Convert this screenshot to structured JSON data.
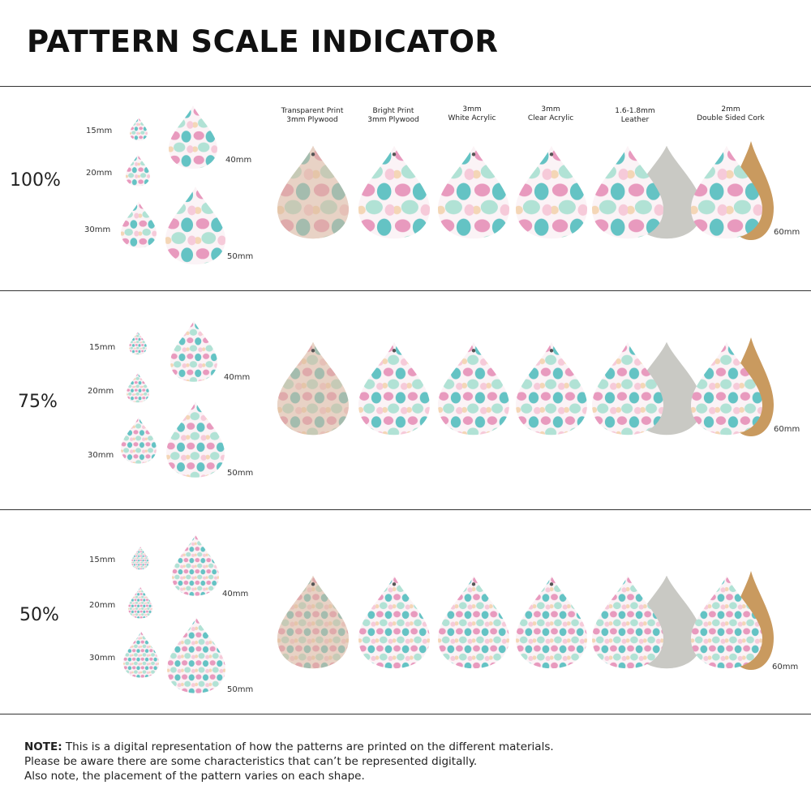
{
  "title": "PATTERN SCALE INDICATOR",
  "materials": [
    {
      "line1": "Transparent Print",
      "line2": "3mm Plywood"
    },
    {
      "line1": "Bright Print",
      "line2": "3mm Plywood"
    },
    {
      "line1": "3mm",
      "line2": "White Acrylic"
    },
    {
      "line1": "3mm",
      "line2": "Clear Acrylic"
    },
    {
      "line1": "1.6-1.8mm",
      "line2": "Leather"
    },
    {
      "line1": "2mm",
      "line2": "Double Sided Cork"
    }
  ],
  "rows": [
    {
      "scale": "100%",
      "sizes": {
        "s15": "15mm",
        "s20": "20mm",
        "s30": "30mm",
        "s40": "40mm",
        "s50": "50mm"
      },
      "material_size": "60mm"
    },
    {
      "scale": "75%",
      "sizes": {
        "s15": "15mm",
        "s20": "20mm",
        "s30": "30mm",
        "s40": "40mm",
        "s50": "50mm"
      },
      "material_size": "60mm"
    },
    {
      "scale": "50%",
      "sizes": {
        "s15": "15mm",
        "s20": "20mm",
        "s30": "30mm",
        "s40": "40mm",
        "s50": "50mm"
      },
      "material_size": "60mm"
    }
  ],
  "note": {
    "label": "NOTE:",
    "line1": "This is a digital representation of how the patterns are printed on the different materials.",
    "line2": "Please be aware there are some characteristics that can’t be represented digitally.",
    "line3": "Also note, the placement of the pattern varies on each shape."
  },
  "colors": {
    "pink": "#e58bb4",
    "teal": "#3fb6b8",
    "mint": "#a9e0d2",
    "blush": "#f5c6d6",
    "peach": "#f3d3b0",
    "wood": "#d8b79c",
    "leather_back": "#c9c9c4",
    "cork": "#c99a5f"
  }
}
